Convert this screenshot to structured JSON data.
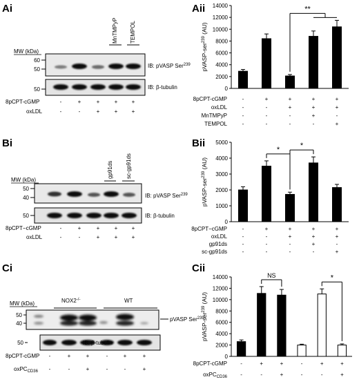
{
  "panels": {
    "A": {
      "blot_label": "Ai",
      "chart_label": "Aii",
      "mw_header": "MW (kDa)",
      "mw_upper": [
        "60",
        "50"
      ],
      "mw_lower": [
        "50"
      ],
      "ib_upper": "IB: pVASP Ser",
      "ib_upper_sup": "239",
      "ib_lower": "IB: β-tubulin",
      "top_labels": [
        "MnTMPyP",
        "TEMPOL"
      ],
      "blot_rows": [
        {
          "label": "8pCPT-cGMP",
          "signs": [
            "-",
            "+",
            "+",
            "+",
            "+"
          ]
        },
        {
          "label": "oxLDL",
          "signs": [
            "-",
            "-",
            "+",
            "+",
            "+"
          ]
        }
      ]
    },
    "B": {
      "blot_label": "Bi",
      "chart_label": "Bii",
      "mw_header": "MW (kDa)",
      "mw_upper": [
        "50",
        "40"
      ],
      "mw_lower": [
        "50"
      ],
      "ib_upper": "IB: pVASP Ser",
      "ib_upper_sup": "239",
      "ib_lower": "IB: β-tubulin",
      "top_labels": [
        "gp91ds",
        "sc-gp91ds"
      ],
      "blot_rows": [
        {
          "label": "8pCPT−cGMP",
          "signs": [
            "-",
            "+",
            "+",
            "+",
            "+"
          ]
        },
        {
          "label": "oxLDL",
          "signs": [
            "-",
            "-",
            "+",
            "+",
            "+"
          ]
        }
      ]
    },
    "C": {
      "blot_label": "Ci",
      "chart_label": "Cii",
      "mw_header": "MW (kDa)",
      "mw_upper": [
        "50",
        "40"
      ],
      "mw_lower": [
        "50"
      ],
      "group_labels": [
        "NOX2",
        "WT"
      ],
      "group_sup": "-/-",
      "band_label": "pVASP Ser",
      "band_sup": "239",
      "ib_lower": "IB: β-tubulin",
      "blot_rows": [
        {
          "label": "8pCPT-cGMP",
          "signs": [
            "-",
            "+",
            "+",
            "-",
            "+",
            "+"
          ]
        },
        {
          "label": "oxPC",
          "sub": "CD36",
          "signs": [
            "-",
            "-",
            "+",
            "-",
            "-",
            "+"
          ]
        }
      ]
    }
  },
  "chart_data": [
    {
      "type": "bar",
      "ylabel": "pVASP-ser",
      "ylabel_sup": "239",
      "ylabel_unit": " (AU)",
      "ylim": [
        0,
        14000
      ],
      "yticks": [
        0,
        2000,
        4000,
        6000,
        8000,
        10000,
        12000,
        14000
      ],
      "values": [
        2900,
        8400,
        2100,
        8800,
        10400
      ],
      "errors": [
        300,
        800,
        250,
        900,
        1100
      ],
      "colors": [
        "#000000",
        "#000000",
        "#000000",
        "#000000",
        "#000000"
      ],
      "rows": [
        {
          "label": "8pCPT-cGMP",
          "signs": [
            "-",
            "+",
            "+",
            "+",
            "+"
          ]
        },
        {
          "label": "oxLDL",
          "signs": [
            "-",
            "-",
            "+",
            "+",
            "+"
          ]
        },
        {
          "label": "MnTMPyP",
          "signs": [
            "-",
            "-",
            "-",
            "+",
            "-"
          ]
        },
        {
          "label": "TEMPOL",
          "signs": [
            "-",
            "-",
            "-",
            "-",
            "+"
          ]
        }
      ],
      "significance": [
        {
          "label": "**",
          "from": 2,
          "to": [
            3,
            4
          ]
        }
      ]
    },
    {
      "type": "bar",
      "ylabel": "pVASP-ser",
      "ylabel_sup": "239",
      "ylabel_unit": " (AU)",
      "ylim": [
        0,
        5000
      ],
      "yticks": [
        0,
        1000,
        2000,
        3000,
        4000,
        5000
      ],
      "values": [
        2000,
        3500,
        1720,
        3700,
        2150
      ],
      "errors": [
        200,
        330,
        140,
        380,
        200
      ],
      "colors": [
        "#000000",
        "#000000",
        "#000000",
        "#000000",
        "#000000"
      ],
      "rows": [
        {
          "label": "8pCPT−cGMP",
          "signs": [
            "-",
            "+",
            "+",
            "+",
            "+"
          ]
        },
        {
          "label": "oxLDL",
          "signs": [
            "-",
            "-",
            "+",
            "+",
            "+"
          ]
        },
        {
          "label": "gp91ds",
          "signs": [
            "-",
            "-",
            "-",
            "+",
            "-"
          ]
        },
        {
          "label": "sc-gp91ds",
          "signs": [
            "-",
            "-",
            "-",
            "-",
            "+"
          ]
        }
      ],
      "significance": [
        {
          "label": "*",
          "from": 1,
          "to": [
            2
          ]
        },
        {
          "label": "*",
          "from": 2,
          "to": [
            3
          ]
        }
      ]
    },
    {
      "type": "bar",
      "ylabel": "pVASP-ser",
      "ylabel_sup": "239",
      "ylabel_unit": " (AU)",
      "ylim": [
        0,
        14000
      ],
      "yticks": [
        0,
        2000,
        4000,
        6000,
        8000,
        10000,
        12000,
        14000
      ],
      "values": [
        2600,
        11100,
        10800,
        2000,
        11000,
        2000
      ],
      "errors": [
        300,
        1200,
        1000,
        150,
        900,
        200
      ],
      "colors": [
        "#000000",
        "#000000",
        "#000000",
        "#ffffff",
        "#ffffff",
        "#ffffff"
      ],
      "rows": [
        {
          "label": "8pCPT-cGMP",
          "signs": [
            "-",
            "+",
            "+",
            "-",
            "+",
            "+"
          ]
        },
        {
          "label": "oxPC",
          "sub": "CD36",
          "signs": [
            "-",
            "-",
            "+",
            "-",
            "-",
            "+"
          ]
        }
      ],
      "significance": [
        {
          "label": "NS",
          "from": 1,
          "to": [
            2
          ]
        },
        {
          "label": "*",
          "from": 4,
          "to": [
            5
          ]
        }
      ]
    }
  ]
}
